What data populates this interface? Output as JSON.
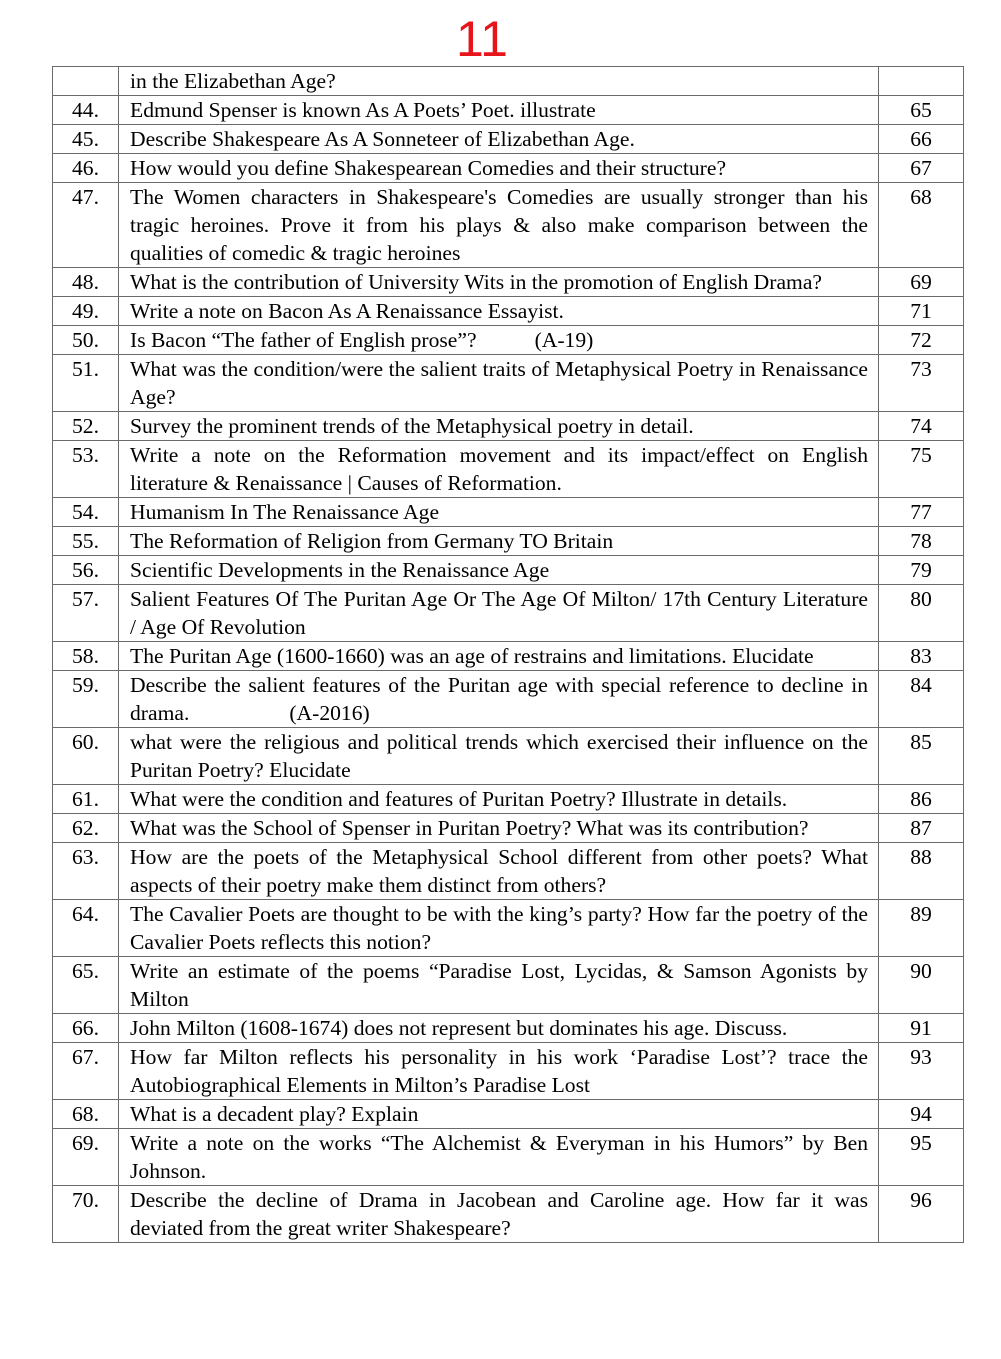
{
  "page_number": "11",
  "rows": [
    {
      "num": "",
      "text": "in the Elizabethan Age?",
      "page": ""
    },
    {
      "num": "44.",
      "text": "Edmund Spenser is known As A Poets’ Poet. illustrate",
      "page": "65"
    },
    {
      "num": "45.",
      "text": "Describe Shakespeare As A Sonneteer of Elizabethan Age.",
      "page": "66"
    },
    {
      "num": "46.",
      "text": "How would you define Shakespearean Comedies and their structure?",
      "page": "67"
    },
    {
      "num": "47.",
      "text": "The Women characters in Shakespeare's Comedies are usually stronger than his tragic heroines. Prove it from his plays & also make comparison between the qualities of comedic & tragic heroines",
      "page": "68"
    },
    {
      "num": "48.",
      "text": "What is the contribution of University Wits in the promotion of English Drama?",
      "page": "69"
    },
    {
      "num": "49.",
      "text": "Write a note on Bacon As A Renaissance Essayist.",
      "page": "71"
    },
    {
      "num": "50.",
      "text": "Is Bacon “The father of English prose”?",
      "note": "(A-19)",
      "page": "72"
    },
    {
      "num": "51.",
      "text": "What was the condition/were the salient traits of Metaphysical Poetry in Renaissance Age?",
      "page": "73"
    },
    {
      "num": "52.",
      "text": "Survey the prominent trends of the Metaphysical poetry in detail.",
      "page": "74"
    },
    {
      "num": "53.",
      "text": "Write a note on the Reformation movement and its impact/effect on English literature & Renaissance | Causes of Reformation.",
      "page": "75"
    },
    {
      "num": "54.",
      "text": "Humanism In The Renaissance Age",
      "page": "77"
    },
    {
      "num": "55.",
      "text": "The Reformation of Religion from Germany TO Britain",
      "page": "78"
    },
    {
      "num": "56.",
      "text": "Scientific Developments in the Renaissance Age",
      "page": "79"
    },
    {
      "num": "57.",
      "text": "Salient Features Of The Puritan Age Or The Age Of Milton/ 17th Century Literature / Age Of Revolution",
      "page": "80"
    },
    {
      "num": "58.",
      "text": "The Puritan Age (1600-1660) was an age of restrains and limitations. Elucidate",
      "page": "83"
    },
    {
      "num": "59.",
      "text": "Describe the salient features of the Puritan age with special reference to decline in drama.",
      "note": "(A-2016)",
      "page": "84"
    },
    {
      "num": "60.",
      "text": "what were the religious and political trends which exercised their influence on the Puritan Poetry? Elucidate",
      "page": "85"
    },
    {
      "num": "61.",
      "text": "What were the condition and features of Puritan Poetry? Illustrate in details.",
      "page": "86"
    },
    {
      "num": "62.",
      "text": "What was the School of Spenser in Puritan Poetry? What was its contribution?",
      "page": "87"
    },
    {
      "num": "63.",
      "text": "How are the poets of the Metaphysical School different from other poets? What aspects of their poetry make them distinct from others?",
      "page": "88"
    },
    {
      "num": "64.",
      "text": "The Cavalier Poets are thought to be with the king’s party? How far the poetry of the Cavalier Poets reflects this notion?",
      "page": "89"
    },
    {
      "num": "65.",
      "text": "Write an estimate of the poems “Paradise Lost, Lycidas, & Samson Agonists by Milton",
      "page": "90"
    },
    {
      "num": "66.",
      "text": "John Milton (1608-1674) does not represent but dominates his age. Discuss.",
      "page": "91"
    },
    {
      "num": "67.",
      "text": "How far Milton reflects his personality in his work ‘Paradise Lost’? trace the Autobiographical Elements in Milton’s Paradise Lost",
      "page": "93"
    },
    {
      "num": "68.",
      "text": "What is a decadent play? Explain",
      "page": "94"
    },
    {
      "num": "69.",
      "text": "Write a note on the works “The Alchemist & Everyman in his Humors” by Ben Johnson.",
      "page": "95"
    },
    {
      "num": "70.",
      "text": "Describe the decline of Drama in Jacobean and Caroline age. How far it was deviated from the great writer Shakespeare?",
      "page": "96"
    }
  ]
}
